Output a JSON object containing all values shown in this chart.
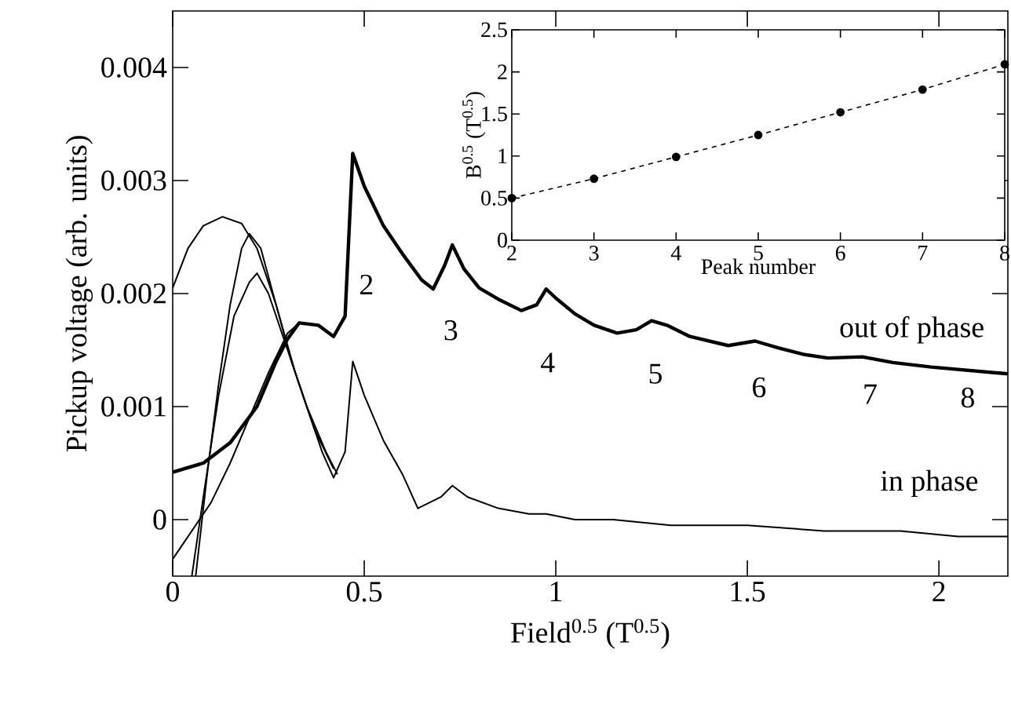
{
  "chart_data": [
    {
      "type": "line",
      "xlabel": "Field$^{0.5}$ (T$^{0.5}$)",
      "ylabel": "Pickup voltage (arb. units)",
      "xlim": [
        0,
        2.18
      ],
      "ylim": [
        -0.0005,
        0.0045
      ],
      "xticks": [
        0,
        0.5,
        1,
        1.5,
        2
      ],
      "yticks": [
        0,
        0.001,
        0.002,
        0.003,
        0.004
      ],
      "line_style": "solid",
      "series": [
        {
          "name": "out of phase",
          "color": "#000000",
          "x": [
            0,
            0.08,
            0.15,
            0.22,
            0.27,
            0.3,
            0.33,
            0.38,
            0.42,
            0.45,
            0.47,
            0.5,
            0.55,
            0.6,
            0.65,
            0.68,
            0.71,
            0.73,
            0.76,
            0.8,
            0.85,
            0.91,
            0.95,
            0.975,
            1.0,
            1.05,
            1.1,
            1.16,
            1.21,
            1.25,
            1.29,
            1.35,
            1.45,
            1.52,
            1.58,
            1.65,
            1.71,
            1.8,
            1.88,
            1.98,
            2.08,
            2.18
          ],
          "values": [
            0.00042,
            0.0005,
            0.00068,
            0.001,
            0.0014,
            0.0016,
            0.00174,
            0.00172,
            0.00162,
            0.0018,
            0.00324,
            0.00295,
            0.0026,
            0.00235,
            0.00212,
            0.00204,
            0.00225,
            0.00243,
            0.00222,
            0.00205,
            0.00195,
            0.00185,
            0.0019,
            0.00204,
            0.00196,
            0.00182,
            0.00172,
            0.00165,
            0.00168,
            0.00176,
            0.00172,
            0.00162,
            0.00154,
            0.00158,
            0.00152,
            0.00146,
            0.00143,
            0.00144,
            0.00139,
            0.00135,
            0.00132,
            0.00129
          ]
        },
        {
          "name": "in phase",
          "color": "#000000",
          "x": [
            0.06,
            0.09,
            0.12,
            0.15,
            0.18,
            0.2,
            0.23,
            0.27,
            0.31,
            0.35,
            0.39,
            0.42,
            0.45,
            0.47,
            0.5,
            0.55,
            0.6,
            0.64,
            0.7,
            0.73,
            0.77,
            0.85,
            0.93,
            0.975,
            1.05,
            1.15,
            1.3,
            1.5,
            1.7,
            1.9,
            2.05,
            2.18
          ],
          "values": [
            -0.0005,
            0.0004,
            0.0012,
            0.0019,
            0.0024,
            0.00253,
            0.0024,
            0.0019,
            0.0014,
            0.001,
            0.0006,
            0.00037,
            0.0006,
            0.0014,
            0.0011,
            0.0007,
            0.0004,
            0.0001,
            0.0002,
            0.0003,
            0.0002,
            0.0001,
            5e-05,
            5e-05,
            0,
            0,
            -5e-05,
            -5e-05,
            -0.0001,
            -0.0001,
            -0.00015,
            -0.00015
          ]
        },
        {
          "color": "#000000",
          "x": [
            0,
            0.04,
            0.08,
            0.13,
            0.18,
            0.22,
            0.27,
            0.32,
            0.37,
            0.42
          ],
          "values": [
            0.00205,
            0.0024,
            0.0026,
            0.00268,
            0.00262,
            0.0024,
            0.0019,
            0.0013,
            0.0008,
            0.00045
          ]
        },
        {
          "color": "#000000",
          "x": [
            0.05,
            0.08,
            0.12,
            0.16,
            0.2,
            0.22,
            0.25,
            0.3,
            0.35,
            0.4,
            0.43
          ],
          "values": [
            -0.0005,
            0.0002,
            0.0011,
            0.0018,
            0.0021,
            0.00218,
            0.002,
            0.0015,
            0.001,
            0.0006,
            0.0004
          ]
        },
        {
          "color": "#000000",
          "x": [
            0,
            0.05,
            0.1,
            0.15,
            0.2,
            0.25,
            0.3,
            0.33
          ],
          "values": [
            -0.00035,
            -0.0001,
            0.00015,
            0.0005,
            0.0009,
            0.0013,
            0.00165,
            0.00174
          ]
        }
      ],
      "annotations": [
        "2",
        "3",
        "4",
        "5",
        "6",
        "7",
        "8"
      ]
    },
    {
      "type": "line",
      "xlabel": "Peak number",
      "ylabel": "B$^{0.5}$ (T$^{0.5}$)",
      "xlim": [
        2,
        8
      ],
      "ylim": [
        0,
        2.5
      ],
      "xticks": [
        2,
        3,
        4,
        5,
        6,
        7,
        8
      ],
      "yticks": [
        0,
        0.5,
        1,
        1.5,
        2,
        2.5
      ],
      "marker": "circle",
      "line_style": "dashed",
      "series": [
        {
          "color": "#000000",
          "x": [
            2,
            3,
            4,
            5,
            6,
            7,
            8
          ],
          "values": [
            0.5,
            0.73,
            0.99,
            1.25,
            1.52,
            1.79,
            2.09
          ]
        }
      ]
    }
  ]
}
